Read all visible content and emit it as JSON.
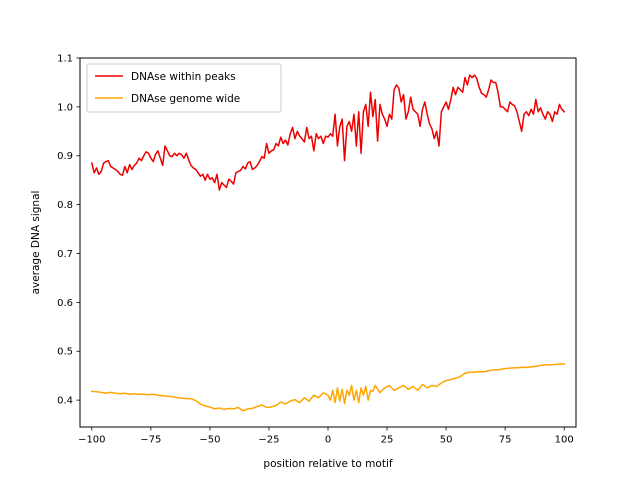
{
  "chart_data": {
    "type": "line",
    "title": "",
    "xlabel": "position relative to motif",
    "ylabel": "average DNA signal",
    "xlim": [
      -105,
      105
    ],
    "ylim": [
      0.345,
      1.1
    ],
    "xticks": [
      -100,
      -75,
      -50,
      -25,
      0,
      25,
      50,
      75,
      100
    ],
    "xtick_labels": [
      "−100",
      "−75",
      "−50",
      "−25",
      "0",
      "25",
      "50",
      "75",
      "100"
    ],
    "yticks": [
      0.4,
      0.5,
      0.6,
      0.7,
      0.8,
      0.9,
      1.0,
      1.1
    ],
    "ytick_labels": [
      "0.4",
      "0.5",
      "0.6",
      "0.7",
      "0.8",
      "0.9",
      "1.0",
      "1.1"
    ],
    "grid": false,
    "legend_position": "upper-left",
    "series": [
      {
        "name": "DNAse within peaks",
        "color": "#ee0000",
        "points": [
          [
            -100,
            0.885
          ],
          [
            -99,
            0.865
          ],
          [
            -98,
            0.875
          ],
          [
            -97,
            0.862
          ],
          [
            -96,
            0.868
          ],
          [
            -95,
            0.885
          ],
          [
            -94,
            0.888
          ],
          [
            -93,
            0.89
          ],
          [
            -92,
            0.878
          ],
          [
            -91,
            0.875
          ],
          [
            -90,
            0.872
          ],
          [
            -89,
            0.868
          ],
          [
            -88,
            0.862
          ],
          [
            -87,
            0.86
          ],
          [
            -86,
            0.878
          ],
          [
            -85,
            0.865
          ],
          [
            -84,
            0.882
          ],
          [
            -83,
            0.872
          ],
          [
            -82,
            0.88
          ],
          [
            -81,
            0.885
          ],
          [
            -80,
            0.895
          ],
          [
            -79,
            0.89
          ],
          [
            -78,
            0.9
          ],
          [
            -77,
            0.908
          ],
          [
            -76,
            0.905
          ],
          [
            -75,
            0.895
          ],
          [
            -74,
            0.888
          ],
          [
            -73,
            0.903
          ],
          [
            -72,
            0.91
          ],
          [
            -71,
            0.895
          ],
          [
            -70,
            0.88
          ],
          [
            -69,
            0.92
          ],
          [
            -68,
            0.91
          ],
          [
            -67,
            0.9
          ],
          [
            -66,
            0.898
          ],
          [
            -65,
            0.905
          ],
          [
            -64,
            0.9
          ],
          [
            -63,
            0.905
          ],
          [
            -62,
            0.902
          ],
          [
            -61,
            0.895
          ],
          [
            -60,
            0.905
          ],
          [
            -59,
            0.892
          ],
          [
            -58,
            0.88
          ],
          [
            -57,
            0.875
          ],
          [
            -56,
            0.872
          ],
          [
            -55,
            0.865
          ],
          [
            -54,
            0.858
          ],
          [
            -53,
            0.862
          ],
          [
            -52,
            0.85
          ],
          [
            -51,
            0.862
          ],
          [
            -50,
            0.852
          ],
          [
            -49,
            0.855
          ],
          [
            -48,
            0.845
          ],
          [
            -47,
            0.862
          ],
          [
            -46,
            0.83
          ],
          [
            -45,
            0.845
          ],
          [
            -44,
            0.84
          ],
          [
            -43,
            0.835
          ],
          [
            -42,
            0.852
          ],
          [
            -41,
            0.848
          ],
          [
            -40,
            0.842
          ],
          [
            -39,
            0.865
          ],
          [
            -38,
            0.868
          ],
          [
            -37,
            0.87
          ],
          [
            -36,
            0.878
          ],
          [
            -35,
            0.873
          ],
          [
            -34,
            0.885
          ],
          [
            -33,
            0.888
          ],
          [
            -32,
            0.872
          ],
          [
            -31,
            0.875
          ],
          [
            -30,
            0.88
          ],
          [
            -29,
            0.888
          ],
          [
            -28,
            0.898
          ],
          [
            -27,
            0.895
          ],
          [
            -26,
            0.925
          ],
          [
            -25,
            0.905
          ],
          [
            -24,
            0.91
          ],
          [
            -23,
            0.912
          ],
          [
            -22,
            0.925
          ],
          [
            -21,
            0.92
          ],
          [
            -20,
            0.938
          ],
          [
            -19,
            0.925
          ],
          [
            -18,
            0.932
          ],
          [
            -17,
            0.922
          ],
          [
            -16,
            0.945
          ],
          [
            -15,
            0.958
          ],
          [
            -14,
            0.935
          ],
          [
            -13,
            0.95
          ],
          [
            -12,
            0.94
          ],
          [
            -11,
            0.935
          ],
          [
            -10,
            0.928
          ],
          [
            -9,
            0.958
          ],
          [
            -8,
            0.935
          ],
          [
            -7,
            0.94
          ],
          [
            -6,
            0.91
          ],
          [
            -5,
            0.945
          ],
          [
            -4,
            0.935
          ],
          [
            -3,
            0.94
          ],
          [
            -2,
            0.925
          ],
          [
            -1,
            0.94
          ],
          [
            0,
            0.938
          ],
          [
            1,
            0.945
          ],
          [
            2,
            0.94
          ],
          [
            3,
            0.985
          ],
          [
            4,
            0.92
          ],
          [
            5,
            0.96
          ],
          [
            6,
            0.975
          ],
          [
            7,
            0.89
          ],
          [
            8,
            0.96
          ],
          [
            9,
            0.97
          ],
          [
            10,
            0.95
          ],
          [
            11,
            0.985
          ],
          [
            12,
            0.92
          ],
          [
            13,
            0.99
          ],
          [
            14,
            0.905
          ],
          [
            15,
            0.99
          ],
          [
            16,
            1.005
          ],
          [
            17,
            0.96
          ],
          [
            18,
            1.03
          ],
          [
            19,
            0.98
          ],
          [
            20,
            1.015
          ],
          [
            21,
            0.93
          ],
          [
            22,
            1.005
          ],
          [
            23,
            0.985
          ],
          [
            24,
            0.975
          ],
          [
            25,
            0.96
          ],
          [
            26,
            0.985
          ],
          [
            27,
            0.975
          ],
          [
            28,
            1.035
          ],
          [
            29,
            1.045
          ],
          [
            30,
            1.038
          ],
          [
            31,
            1.01
          ],
          [
            32,
            1.025
          ],
          [
            33,
            0.975
          ],
          [
            34,
            0.99
          ],
          [
            35,
            1.02
          ],
          [
            36,
            0.995
          ],
          [
            37,
            0.99
          ],
          [
            38,
            0.985
          ],
          [
            39,
            0.96
          ],
          [
            40,
            0.995
          ],
          [
            41,
            1.01
          ],
          [
            42,
            0.985
          ],
          [
            43,
            0.965
          ],
          [
            44,
            0.955
          ],
          [
            45,
            0.935
          ],
          [
            46,
            0.95
          ],
          [
            47,
            0.92
          ],
          [
            48,
            0.99
          ],
          [
            49,
            1.0
          ],
          [
            50,
            1.01
          ],
          [
            51,
            0.995
          ],
          [
            52,
            1.015
          ],
          [
            53,
            1.04
          ],
          [
            54,
            1.025
          ],
          [
            55,
            1.04
          ],
          [
            56,
            1.035
          ],
          [
            57,
            1.03
          ],
          [
            58,
            1.06
          ],
          [
            59,
            1.045
          ],
          [
            60,
            1.065
          ],
          [
            61,
            1.06
          ],
          [
            62,
            1.065
          ],
          [
            63,
            1.058
          ],
          [
            64,
            1.04
          ],
          [
            65,
            1.028
          ],
          [
            66,
            1.025
          ],
          [
            67,
            1.02
          ],
          [
            68,
            1.035
          ],
          [
            69,
            1.055
          ],
          [
            70,
            1.05
          ],
          [
            71,
            1.05
          ],
          [
            72,
            1.03
          ],
          [
            73,
            1.0
          ],
          [
            74,
            1.0
          ],
          [
            75,
            0.995
          ],
          [
            76,
            0.99
          ],
          [
            77,
            1.01
          ],
          [
            78,
            1.005
          ],
          [
            79,
            1.002
          ],
          [
            80,
            0.99
          ],
          [
            81,
            0.97
          ],
          [
            82,
            0.95
          ],
          [
            83,
            0.985
          ],
          [
            84,
            0.99
          ],
          [
            85,
            0.982
          ],
          [
            86,
            0.995
          ],
          [
            87,
            0.985
          ],
          [
            88,
            1.015
          ],
          [
            89,
            0.99
          ],
          [
            90,
            0.998
          ],
          [
            91,
            0.985
          ],
          [
            92,
            0.975
          ],
          [
            93,
            0.99
          ],
          [
            94,
            0.985
          ],
          [
            95,
            0.97
          ],
          [
            96,
            0.99
          ],
          [
            97,
            0.985
          ],
          [
            98,
            1.005
          ],
          [
            99,
            0.995
          ],
          [
            100,
            0.99
          ]
        ]
      },
      {
        "name": "DNAse genome wide",
        "color": "#ffa500",
        "points": [
          [
            -100,
            0.418
          ],
          [
            -98,
            0.417
          ],
          [
            -96,
            0.416
          ],
          [
            -94,
            0.414
          ],
          [
            -92,
            0.416
          ],
          [
            -90,
            0.414
          ],
          [
            -88,
            0.413
          ],
          [
            -86,
            0.414
          ],
          [
            -84,
            0.412
          ],
          [
            -82,
            0.413
          ],
          [
            -80,
            0.412
          ],
          [
            -78,
            0.412
          ],
          [
            -76,
            0.411
          ],
          [
            -74,
            0.412
          ],
          [
            -72,
            0.41
          ],
          [
            -70,
            0.409
          ],
          [
            -68,
            0.408
          ],
          [
            -66,
            0.407
          ],
          [
            -64,
            0.405
          ],
          [
            -62,
            0.404
          ],
          [
            -60,
            0.403
          ],
          [
            -58,
            0.403
          ],
          [
            -56,
            0.399
          ],
          [
            -54,
            0.392
          ],
          [
            -52,
            0.388
          ],
          [
            -50,
            0.386
          ],
          [
            -48,
            0.382
          ],
          [
            -46,
            0.384
          ],
          [
            -44,
            0.381
          ],
          [
            -42,
            0.383
          ],
          [
            -40,
            0.382
          ],
          [
            -38,
            0.385
          ],
          [
            -36,
            0.378
          ],
          [
            -34,
            0.382
          ],
          [
            -32,
            0.383
          ],
          [
            -30,
            0.387
          ],
          [
            -28,
            0.39
          ],
          [
            -26,
            0.385
          ],
          [
            -24,
            0.386
          ],
          [
            -22,
            0.389
          ],
          [
            -20,
            0.396
          ],
          [
            -18,
            0.392
          ],
          [
            -16,
            0.398
          ],
          [
            -14,
            0.401
          ],
          [
            -12,
            0.395
          ],
          [
            -10,
            0.405
          ],
          [
            -8,
            0.398
          ],
          [
            -6,
            0.41
          ],
          [
            -4,
            0.405
          ],
          [
            -2,
            0.415
          ],
          [
            0,
            0.41
          ],
          [
            1,
            0.4
          ],
          [
            2,
            0.42
          ],
          [
            3,
            0.395
          ],
          [
            4,
            0.425
          ],
          [
            5,
            0.398
          ],
          [
            6,
            0.422
          ],
          [
            7,
            0.393
          ],
          [
            8,
            0.42
          ],
          [
            9,
            0.41
          ],
          [
            10,
            0.43
          ],
          [
            11,
            0.4
          ],
          [
            12,
            0.42
          ],
          [
            13,
            0.395
          ],
          [
            14,
            0.425
          ],
          [
            15,
            0.41
          ],
          [
            16,
            0.428
          ],
          [
            17,
            0.4
          ],
          [
            18,
            0.42
          ],
          [
            19,
            0.418
          ],
          [
            20,
            0.43
          ],
          [
            22,
            0.415
          ],
          [
            24,
            0.425
          ],
          [
            26,
            0.43
          ],
          [
            28,
            0.42
          ],
          [
            30,
            0.425
          ],
          [
            32,
            0.43
          ],
          [
            34,
            0.422
          ],
          [
            36,
            0.428
          ],
          [
            38,
            0.42
          ],
          [
            40,
            0.432
          ],
          [
            42,
            0.425
          ],
          [
            44,
            0.43
          ],
          [
            46,
            0.428
          ],
          [
            48,
            0.435
          ],
          [
            50,
            0.44
          ],
          [
            52,
            0.442
          ],
          [
            54,
            0.445
          ],
          [
            56,
            0.448
          ],
          [
            58,
            0.455
          ],
          [
            60,
            0.457
          ],
          [
            62,
            0.457
          ],
          [
            64,
            0.458
          ],
          [
            66,
            0.458
          ],
          [
            68,
            0.46
          ],
          [
            70,
            0.462
          ],
          [
            72,
            0.462
          ],
          [
            74,
            0.464
          ],
          [
            76,
            0.465
          ],
          [
            78,
            0.466
          ],
          [
            80,
            0.466
          ],
          [
            82,
            0.467
          ],
          [
            84,
            0.467
          ],
          [
            86,
            0.468
          ],
          [
            88,
            0.469
          ],
          [
            90,
            0.471
          ],
          [
            92,
            0.472
          ],
          [
            94,
            0.472
          ],
          [
            96,
            0.473
          ],
          [
            98,
            0.474
          ],
          [
            100,
            0.474
          ]
        ]
      }
    ]
  }
}
